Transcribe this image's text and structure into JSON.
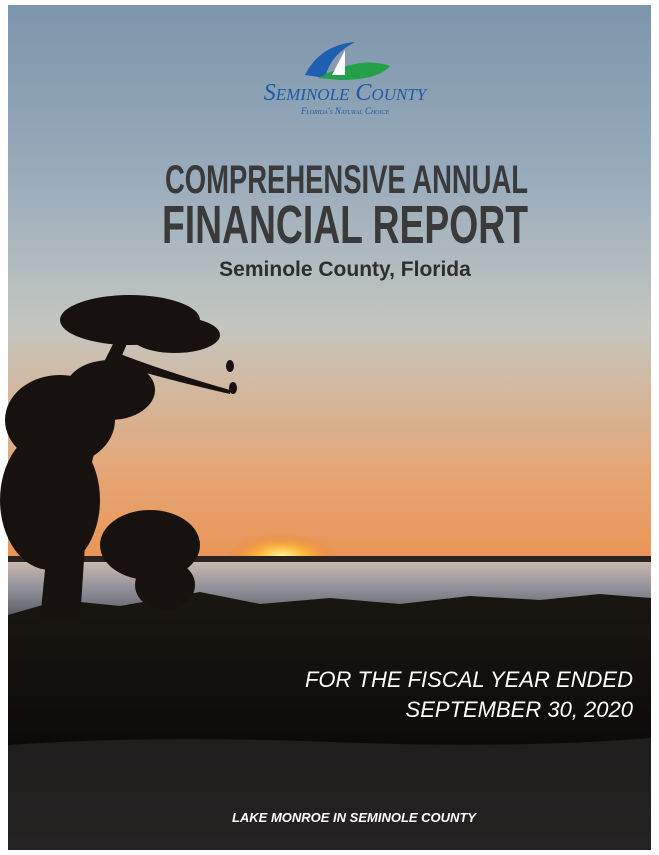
{
  "logo": {
    "name": "Seminole County",
    "tagline": "Florida's Natural Choice"
  },
  "title": {
    "line1": "COMPREHENSIVE ANNUAL",
    "line2": "FINANCIAL REPORT",
    "subtitle": "Seminole County, Florida"
  },
  "fiscal": {
    "line1": "FOR THE FISCAL YEAR ENDED",
    "line2": "SEPTEMBER 30, 2020"
  },
  "caption": "LAKE MONROE IN SEMINOLE COUNTY"
}
